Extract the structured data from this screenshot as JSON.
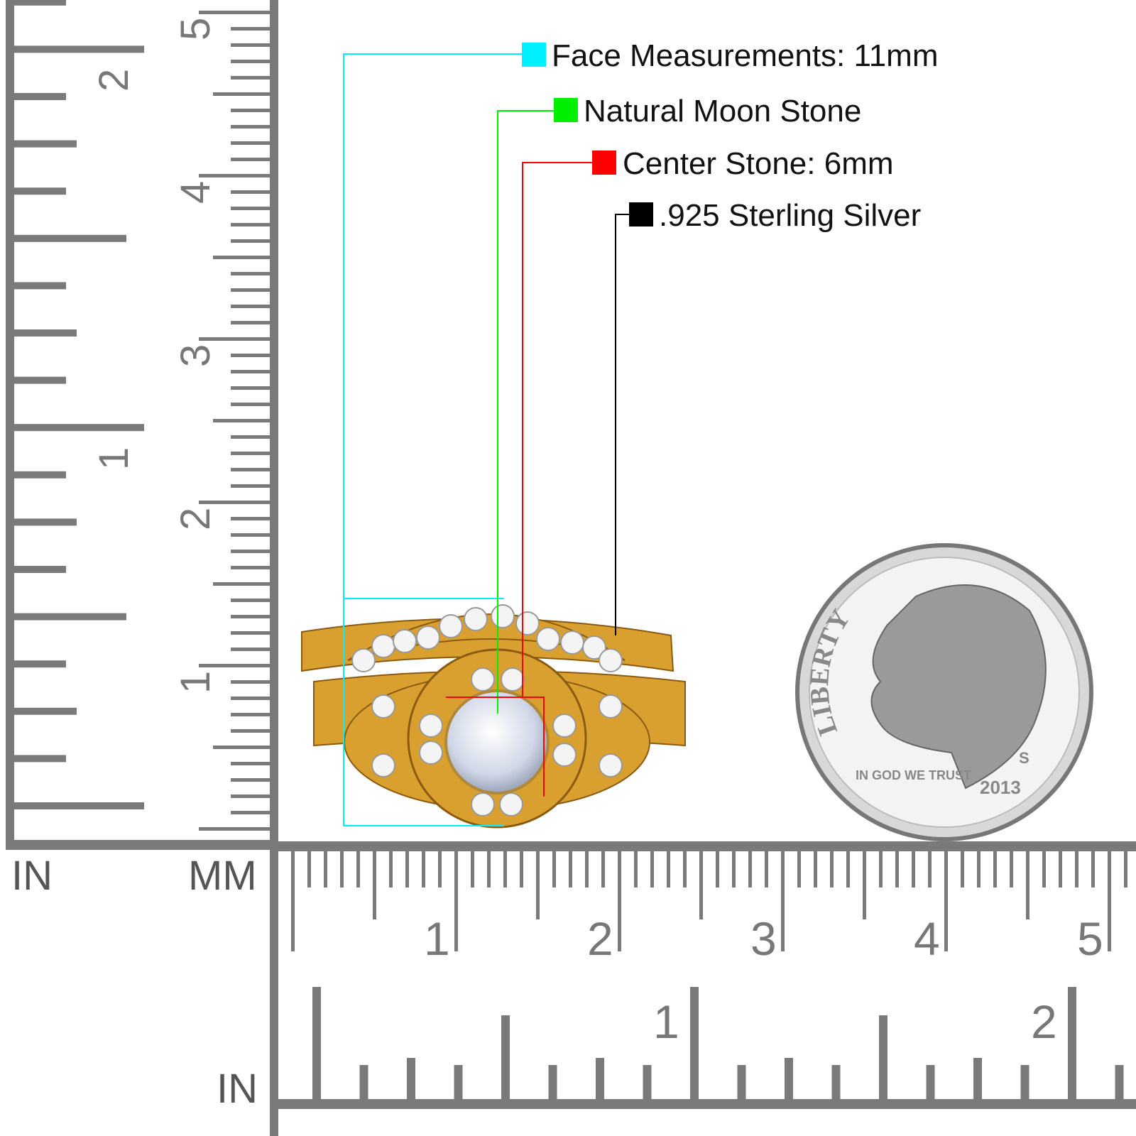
{
  "specs": [
    {
      "label": "Face Measurements: 11mm",
      "color": "#00f0ff"
    },
    {
      "label": "Natural Moon Stone",
      "color": "#00ee00"
    },
    {
      "label": "Center Stone: 6mm",
      "color": "#ff0000"
    },
    {
      "label": ".925 Sterling Silver",
      "color": "#000000"
    }
  ],
  "ruler": {
    "left_unit": "IN",
    "mm_unit": "MM",
    "bottom_in_unit": "IN",
    "cm_numbers": [
      "1",
      "2",
      "3",
      "4",
      "5"
    ],
    "inch_numbers": [
      "1",
      "2"
    ],
    "color": "#7a7a7a"
  },
  "coin": {
    "legend": "LIBERTY",
    "motto": "IN GOD WE TRUST",
    "year": "2013",
    "mint_mark": "S"
  },
  "ring": {
    "metal_color": "#d9a030",
    "center_stone": "moonstone"
  }
}
